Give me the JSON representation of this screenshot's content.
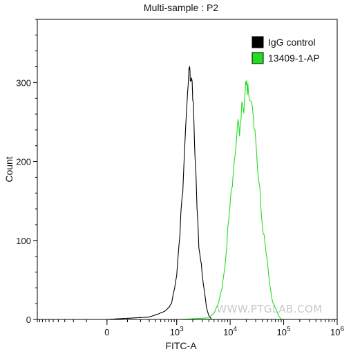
{
  "chart_data": {
    "type": "line",
    "title": "Multi-sample : P2",
    "xlabel": "FITC-A",
    "ylabel": "Count",
    "x_scale": "biexponential",
    "xlim": [
      -1000,
      1000000
    ],
    "ylim": [
      0,
      380
    ],
    "y_ticks": [
      0,
      100,
      200,
      300
    ],
    "x_ticks": [
      {
        "value": 0,
        "label": "0"
      },
      {
        "value": 1000,
        "label": "10",
        "exp": "3"
      },
      {
        "value": 10000,
        "label": "10",
        "exp": "4"
      },
      {
        "value": 100000,
        "label": "10",
        "exp": "5"
      },
      {
        "value": 1000000,
        "label": "10",
        "exp": "6"
      }
    ],
    "legend_position": "top-right",
    "grid": false,
    "series": [
      {
        "name": "IgG control",
        "color": "#000000",
        "x": [
          0,
          300,
          600,
          800,
          1000,
          1100,
          1200,
          1300,
          1400,
          1500,
          1600,
          1700,
          1750,
          1800,
          1900,
          2000,
          2100,
          2200,
          2400,
          2600,
          2800,
          3000,
          3300,
          3600,
          4000,
          4500
        ],
        "y": [
          0,
          3,
          10,
          20,
          55,
          90,
          130,
          165,
          220,
          260,
          290,
          310,
          318,
          300,
          310,
          285,
          250,
          205,
          150,
          95,
          75,
          60,
          35,
          15,
          5,
          0
        ]
      },
      {
        "name": "13409-1-AP",
        "color": "#22dd22",
        "x": [
          1200,
          4000,
          5000,
          6000,
          7000,
          8000,
          9000,
          10000,
          11000,
          12000,
          13000,
          14000,
          15000,
          16000,
          17000,
          18000,
          19000,
          20000,
          21000,
          22000,
          24000,
          26000,
          28000,
          30000,
          33000,
          36000,
          40000,
          45000,
          50000,
          55000,
          60000,
          70000,
          80000,
          90000
        ],
        "y": [
          0,
          2,
          8,
          20,
          40,
          70,
          110,
          145,
          175,
          200,
          225,
          245,
          240,
          260,
          275,
          270,
          285,
          305,
          292,
          290,
          275,
          262,
          248,
          225,
          190,
          165,
          125,
          95,
          70,
          45,
          25,
          15,
          5,
          0
        ]
      }
    ]
  },
  "watermark": "WWW.PTGLAB.COM"
}
